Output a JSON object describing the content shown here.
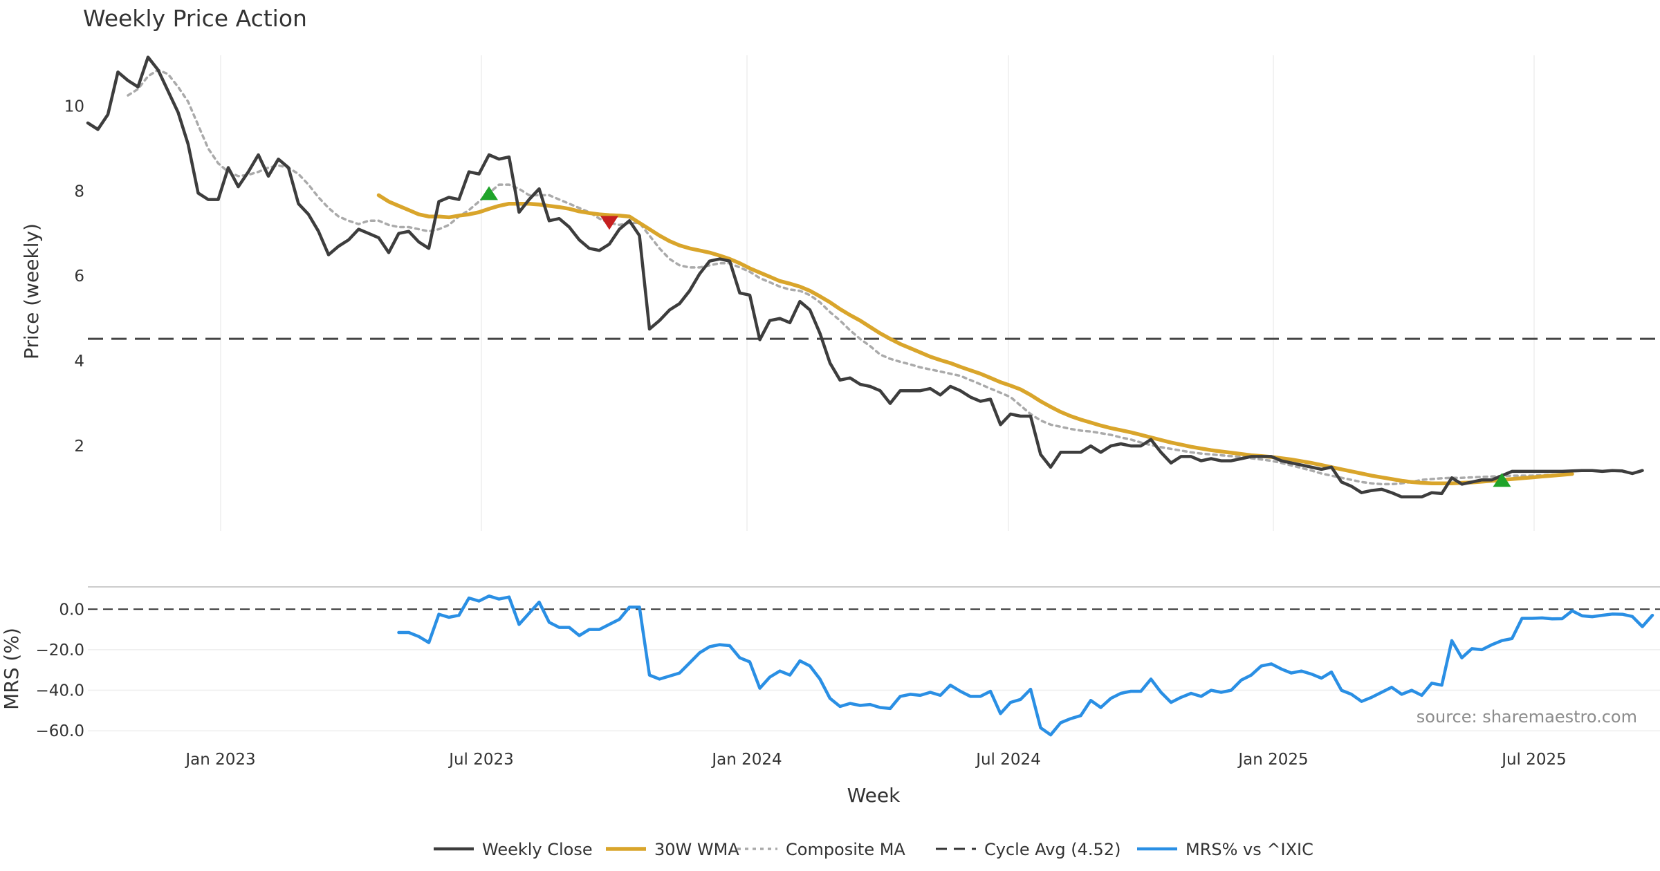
{
  "chart_data": {
    "type": "line",
    "title": "Weekly Price Action",
    "xlabel": "Week",
    "x_ticks": [
      "Jan 2023",
      "Jul 2023",
      "Jan 2024",
      "Jul 2024",
      "Jan 2025",
      "Jul 2025"
    ],
    "source_note": "source: sharemaestro.com",
    "legend_position": "bottom-center",
    "price_panel": {
      "ylabel": "Price (weekly)",
      "ylim": [
        0,
        11.6
      ],
      "y_ticks": [
        "2",
        "4",
        "6",
        "8",
        "10"
      ],
      "grid": "vertical",
      "cycle_avg": 4.52,
      "series": [
        {
          "name": "Weekly Close",
          "color": "#3d3d3d",
          "style": "solid",
          "start": 0,
          "values": [
            9.6,
            9.45,
            9.8,
            10.8,
            10.6,
            10.45,
            11.15,
            10.85,
            10.35,
            9.85,
            9.1,
            7.95,
            7.8,
            7.8,
            8.55,
            8.1,
            8.45,
            8.85,
            8.35,
            8.75,
            8.55,
            7.7,
            7.45,
            7.05,
            6.5,
            6.7,
            6.85,
            7.1,
            7.0,
            6.9,
            6.55,
            7.0,
            7.05,
            6.8,
            6.65,
            7.75,
            7.85,
            7.8,
            8.45,
            8.4,
            8.85,
            8.75,
            8.8,
            7.5,
            7.8,
            8.05,
            7.3,
            7.35,
            7.15,
            6.85,
            6.65,
            6.6,
            6.75,
            7.1,
            7.3,
            6.95,
            4.75,
            4.95,
            5.2,
            5.35,
            5.65,
            6.05,
            6.35,
            6.4,
            6.35,
            5.6,
            5.55,
            4.5,
            4.95,
            5.0,
            4.9,
            5.4,
            5.2,
            4.65,
            3.95,
            3.55,
            3.6,
            3.45,
            3.4,
            3.3,
            3.0,
            3.3,
            3.3,
            3.3,
            3.35,
            3.2,
            3.4,
            3.3,
            3.15,
            3.05,
            3.1,
            2.5,
            2.75,
            2.7,
            2.7,
            1.8,
            1.5,
            1.85,
            1.85,
            1.85,
            2.0,
            1.85,
            2.0,
            2.05,
            2.0,
            2.0,
            2.15,
            1.85,
            1.6,
            1.75,
            1.75,
            1.65,
            1.7,
            1.65,
            1.65,
            1.7,
            1.75,
            1.75,
            1.75,
            1.65,
            1.6,
            1.55,
            1.5,
            1.45,
            1.5,
            1.15,
            1.05,
            0.9,
            0.95,
            0.98,
            0.9,
            0.8,
            0.8,
            0.8,
            0.9,
            0.88,
            1.25,
            1.1,
            1.15,
            1.2,
            1.2,
            1.3,
            1.4,
            1.4,
            1.4,
            1.4,
            1.4,
            1.4,
            1.41,
            1.42,
            1.42,
            1.4,
            1.42,
            1.41,
            1.35,
            1.42
          ]
        },
        {
          "name": "30W WMA",
          "color": "#d9a52b",
          "style": "solid",
          "start": 29,
          "values": [
            7.9,
            7.75,
            7.65,
            7.55,
            7.45,
            7.4,
            7.4,
            7.38,
            7.42,
            7.45,
            7.5,
            7.58,
            7.65,
            7.7,
            7.7,
            7.7,
            7.68,
            7.65,
            7.62,
            7.58,
            7.52,
            7.48,
            7.45,
            7.43,
            7.42,
            7.4,
            7.25,
            7.1,
            6.95,
            6.82,
            6.72,
            6.65,
            6.6,
            6.55,
            6.48,
            6.4,
            6.3,
            6.18,
            6.08,
            5.98,
            5.88,
            5.82,
            5.75,
            5.65,
            5.52,
            5.38,
            5.22,
            5.08,
            4.95,
            4.8,
            4.65,
            4.52,
            4.4,
            4.3,
            4.2,
            4.1,
            4.02,
            3.95,
            3.86,
            3.78,
            3.7,
            3.6,
            3.5,
            3.42,
            3.33,
            3.2,
            3.05,
            2.92,
            2.8,
            2.7,
            2.62,
            2.55,
            2.48,
            2.42,
            2.37,
            2.32,
            2.26,
            2.2,
            2.14,
            2.08,
            2.03,
            1.98,
            1.94,
            1.9,
            1.87,
            1.84,
            1.81,
            1.78,
            1.76,
            1.74,
            1.71,
            1.68,
            1.64,
            1.6,
            1.55,
            1.5,
            1.45,
            1.4,
            1.35,
            1.3,
            1.26,
            1.22,
            1.18,
            1.15,
            1.13,
            1.12,
            1.12,
            1.12,
            1.13,
            1.14,
            1.16,
            1.18,
            1.2,
            1.22,
            1.24,
            1.26,
            1.28,
            1.3,
            1.32,
            1.34
          ]
        },
        {
          "name": "Composite MA",
          "color": "#aaaaaa",
          "style": "dotted",
          "start": 4,
          "values": [
            10.25,
            10.4,
            10.7,
            10.85,
            10.75,
            10.45,
            10.1,
            9.55,
            9.0,
            8.65,
            8.45,
            8.35,
            8.38,
            8.45,
            8.55,
            8.6,
            8.55,
            8.4,
            8.15,
            7.85,
            7.6,
            7.4,
            7.3,
            7.22,
            7.3,
            7.3,
            7.2,
            7.15,
            7.15,
            7.1,
            7.05,
            7.1,
            7.2,
            7.4,
            7.55,
            7.75,
            7.95,
            8.15,
            8.15,
            8.05,
            7.9,
            7.9,
            7.9,
            7.8,
            7.7,
            7.6,
            7.5,
            7.35,
            7.25,
            7.2,
            7.25,
            7.25,
            6.95,
            6.65,
            6.4,
            6.25,
            6.2,
            6.2,
            6.25,
            6.3,
            6.3,
            6.2,
            6.1,
            5.95,
            5.85,
            5.75,
            5.68,
            5.65,
            5.55,
            5.38,
            5.15,
            4.95,
            4.72,
            4.52,
            4.35,
            4.15,
            4.05,
            3.98,
            3.92,
            3.85,
            3.8,
            3.75,
            3.7,
            3.65,
            3.55,
            3.45,
            3.35,
            3.25,
            3.15,
            2.95,
            2.75,
            2.6,
            2.5,
            2.45,
            2.4,
            2.36,
            2.34,
            2.3,
            2.26,
            2.2,
            2.15,
            2.08,
            2.02,
            1.97,
            1.93,
            1.89,
            1.85,
            1.82,
            1.8,
            1.78,
            1.76,
            1.74,
            1.71,
            1.68,
            1.65,
            1.6,
            1.54,
            1.48,
            1.42,
            1.35,
            1.3,
            1.25,
            1.2,
            1.15,
            1.12,
            1.1,
            1.1,
            1.12,
            1.15,
            1.2,
            1.22,
            1.24,
            1.25,
            1.25,
            1.26,
            1.27,
            1.28,
            1.29,
            1.3,
            1.3,
            1.3,
            1.31,
            1.32,
            1.32
          ]
        },
        {
          "name": "Cycle Avg (4.52)",
          "color": "#333333",
          "style": "dashed"
        }
      ],
      "markers": [
        {
          "type": "buy",
          "x": 40,
          "y": 7.95,
          "color": "#1fa32a"
        },
        {
          "type": "sell",
          "x": 52,
          "y": 7.25,
          "color": "#c62020"
        },
        {
          "type": "buy",
          "x": 141,
          "y": 1.2,
          "color": "#1fa32a"
        }
      ]
    },
    "mrs_panel": {
      "ylabel": "MRS (%)",
      "ylim": [
        -63,
        11
      ],
      "y_ticks": [
        "0.0",
        "−20.0",
        "−40.0",
        "−60.0"
      ],
      "zero_line": 0,
      "series": [
        {
          "name": "MRS% vs ^IXIC",
          "color": "#2a8fe4",
          "style": "solid",
          "start": 31,
          "values": [
            -11.5,
            -11.5,
            -13.5,
            -16.5,
            -2.5,
            -4.0,
            -3.0,
            5.5,
            4.0,
            6.5,
            5.0,
            6.0,
            -7.5,
            -2.0,
            3.5,
            -6.5,
            -9.0,
            -9.0,
            -13.0,
            -10.0,
            -10.0,
            -7.5,
            -5.0,
            1.0,
            1.0,
            -32.5,
            -34.5,
            -33.0,
            -31.5,
            -26.5,
            -21.5,
            -18.5,
            -17.5,
            -18.0,
            -24.0,
            -26.0,
            -39.0,
            -33.5,
            -30.5,
            -32.5,
            -25.5,
            -28.0,
            -34.5,
            -44.0,
            -48.0,
            -46.5,
            -47.5,
            -47.0,
            -48.5,
            -49.0,
            -43.0,
            -42.0,
            -42.5,
            -41.0,
            -42.5,
            -37.5,
            -40.5,
            -43.0,
            -43.0,
            -40.5,
            -51.5,
            -46.0,
            -44.5,
            -39.5,
            -58.5,
            -62.0,
            -56.0,
            -54.0,
            -52.5,
            -45.0,
            -48.5,
            -44.0,
            -41.5,
            -40.5,
            -40.5,
            -34.5,
            -41.0,
            -46.0,
            -43.5,
            -41.5,
            -43.0,
            -40.0,
            -41.0,
            -40.0,
            -35.0,
            -32.5,
            -28.0,
            -27.0,
            -29.5,
            -31.5,
            -30.5,
            -32.0,
            -34.0,
            -31.0,
            -40.0,
            -42.0,
            -45.5,
            -43.5,
            -41.0,
            -38.5,
            -42.0,
            -40.0,
            -42.5,
            -36.5,
            -37.5,
            -15.5,
            -24.0,
            -19.5,
            -20.0,
            -17.5,
            -15.5,
            -14.5,
            -4.5,
            -4.5,
            -4.3,
            -4.8,
            -4.7,
            -0.8,
            -3.3,
            -3.7,
            -3.0,
            -2.4,
            -2.5,
            -3.6,
            -8.6,
            -3.0
          ]
        }
      ]
    }
  }
}
